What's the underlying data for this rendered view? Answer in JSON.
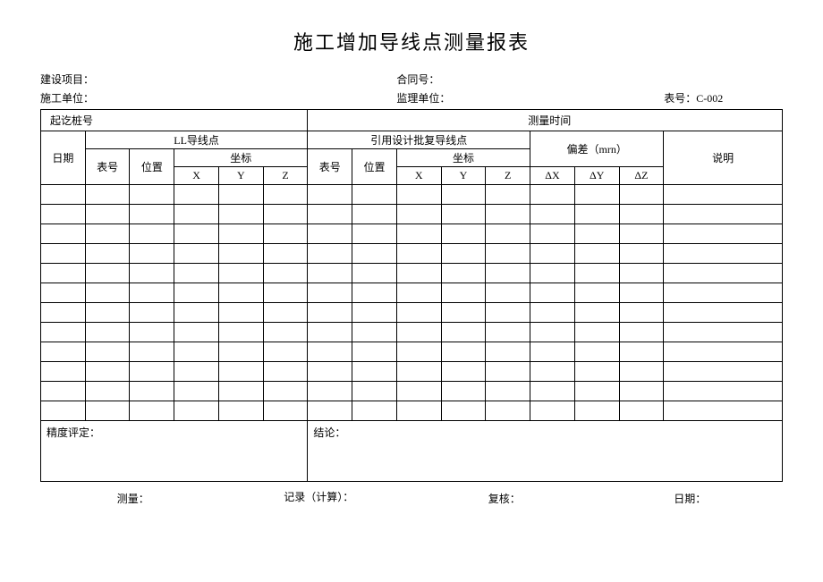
{
  "title": "施工增加导线点测量报表",
  "meta": {
    "project_label": "建设项目：",
    "contract_label": "合同号：",
    "builder_label": "施工单位：",
    "supervisor_label": "监理单位：",
    "form_no_label": "表号：",
    "form_no_value": "C-002"
  },
  "header": {
    "stake_no": "起讫桩号",
    "meas_time": "测量时间",
    "date": "日期",
    "ll_point": "LL导线点",
    "ref_point": "引用设计批复导线点",
    "deviation": "偏差（mrn）",
    "remark": "说明",
    "table_no": "表号",
    "position": "位置",
    "coord": "坐标",
    "x": "X",
    "y": "Y",
    "z": "Z",
    "dx": "ΔX",
    "dy": "ΔY",
    "dz": "ΔZ"
  },
  "footer": {
    "precision": "精度评定：",
    "conclusion": "结论："
  },
  "sign": {
    "measure": "测量：",
    "record": "记录（计算）：",
    "review": "复核：",
    "date": "日期："
  },
  "layout": {
    "data_rows": 12,
    "col_count": 15
  }
}
